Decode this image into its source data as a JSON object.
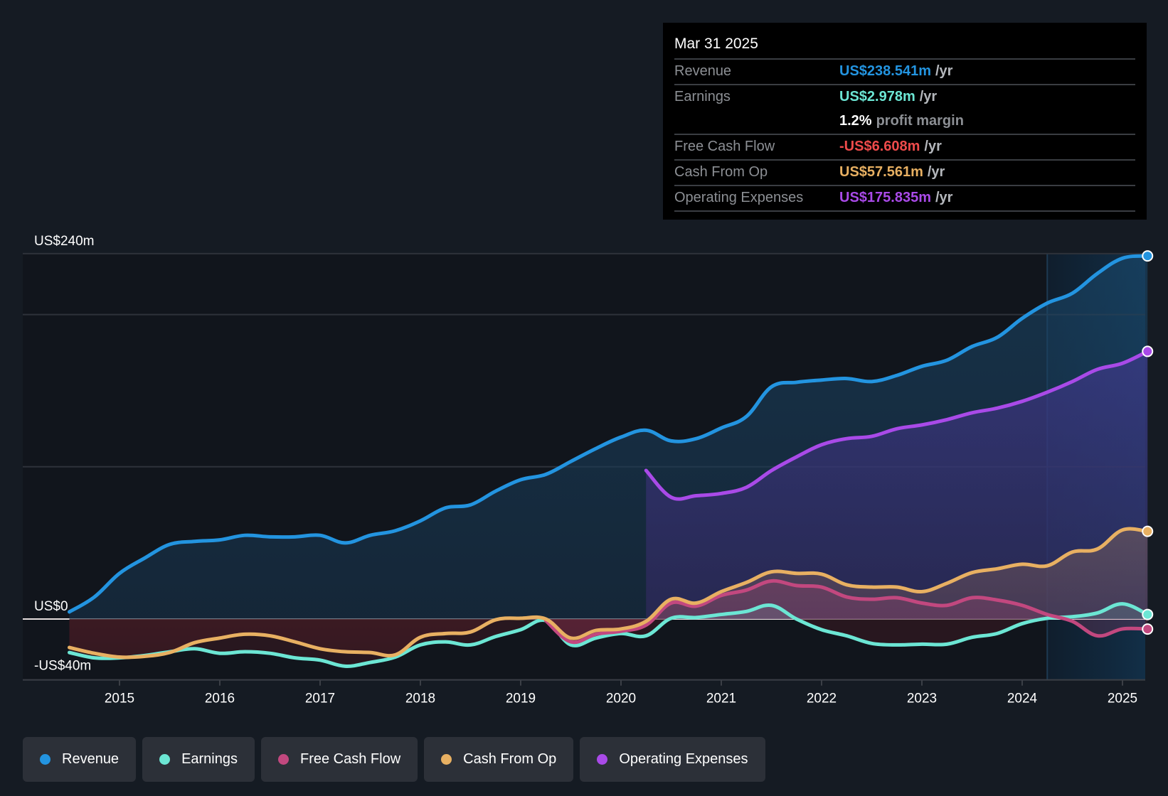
{
  "colors": {
    "revenue": "#2394e0",
    "earnings": "#6ce6d4",
    "fcf": "#c2487f",
    "cashop": "#e8b062",
    "opex": "#a94ae8",
    "fcf_negative_text": "#ee4b4b"
  },
  "tooltip": {
    "date": "Mar 31 2025",
    "rows": [
      {
        "label": "Revenue",
        "value": "US$238.541m",
        "unit": "/yr",
        "color_key": "revenue"
      },
      {
        "label": "Earnings",
        "value": "US$2.978m",
        "unit": "/yr",
        "color_key": "earnings"
      },
      {
        "label": "",
        "value": "1.2%",
        "unit": "profit margin"
      },
      {
        "label": "Free Cash Flow",
        "value": "-US$6.608m",
        "unit": "/yr",
        "color_key": "fcf_negative_text"
      },
      {
        "label": "Cash From Op",
        "value": "US$57.561m",
        "unit": "/yr",
        "color_key": "cashop"
      },
      {
        "label": "Operating Expenses",
        "value": "US$175.835m",
        "unit": "/yr",
        "color_key": "opex"
      }
    ]
  },
  "legend": [
    {
      "label": "Revenue",
      "key": "revenue"
    },
    {
      "label": "Earnings",
      "key": "earnings"
    },
    {
      "label": "Free Cash Flow",
      "key": "fcf"
    },
    {
      "label": "Cash From Op",
      "key": "cashop"
    },
    {
      "label": "Operating Expenses",
      "key": "opex"
    }
  ],
  "chart_data": {
    "type": "area",
    "title": "",
    "xlabel": "",
    "ylabel": "",
    "ylim": [
      -40,
      240
    ],
    "y_tick_labels": [
      {
        "value": 240,
        "label": "US$240m"
      },
      {
        "value": 0,
        "label": "US$0"
      },
      {
        "value": -40,
        "label": "-US$40m"
      }
    ],
    "y_gridlines": [
      240,
      200,
      100,
      0,
      -40
    ],
    "xlim": [
      2014.0,
      2025.25
    ],
    "x_ticks": [
      2015,
      2016,
      2017,
      2018,
      2019,
      2020,
      2021,
      2022,
      2023,
      2024,
      2025
    ],
    "x_tick_labels": [
      "2015",
      "2016",
      "2017",
      "2018",
      "2019",
      "2020",
      "2021",
      "2022",
      "2023",
      "2024",
      "2025"
    ],
    "highlight_range": [
      2024.25,
      2025.25
    ],
    "grid": true,
    "legend_position": "bottom",
    "units": "US$ millions",
    "series": [
      {
        "name": "Revenue",
        "key": "revenue",
        "x": [
          2014.5,
          2014.75,
          2015,
          2015.25,
          2015.5,
          2015.75,
          2016,
          2016.25,
          2016.5,
          2016.75,
          2017,
          2017.25,
          2017.5,
          2017.75,
          2018,
          2018.25,
          2018.5,
          2018.75,
          2019,
          2019.25,
          2019.5,
          2019.75,
          2020,
          2020.25,
          2020.5,
          2020.75,
          2021,
          2021.25,
          2021.5,
          2021.75,
          2022,
          2022.25,
          2022.5,
          2022.75,
          2023,
          2023.25,
          2023.5,
          2023.75,
          2024,
          2024.25,
          2024.5,
          2024.75,
          2025,
          2025.25
        ],
        "values": [
          4.7,
          14.5,
          30,
          40,
          49,
          51,
          52,
          55,
          54,
          54,
          55,
          50,
          55,
          58,
          64.5,
          73,
          75,
          84,
          91.5,
          95,
          103.5,
          112,
          119.5,
          124,
          117,
          118.5,
          125.5,
          133,
          152.5,
          155.5,
          157,
          158,
          156,
          160,
          166,
          170,
          179,
          185,
          197.5,
          207.5,
          214,
          227,
          237,
          238.5
        ]
      },
      {
        "name": "Earnings",
        "key": "earnings",
        "x": [
          2014.5,
          2014.75,
          2015,
          2015.25,
          2015.5,
          2015.75,
          2016,
          2016.25,
          2016.5,
          2016.75,
          2017,
          2017.25,
          2017.5,
          2017.75,
          2018,
          2018.25,
          2018.5,
          2018.75,
          2019,
          2019.25,
          2019.5,
          2019.75,
          2020,
          2020.25,
          2020.5,
          2020.75,
          2021,
          2021.25,
          2021.5,
          2021.75,
          2022,
          2022.25,
          2022.5,
          2022.75,
          2023,
          2023.25,
          2023.5,
          2023.75,
          2024,
          2024.25,
          2024.5,
          2024.75,
          2025,
          2025.25
        ],
        "values": [
          -22,
          -25.5,
          -25.5,
          -24,
          -21.5,
          -19.5,
          -22.5,
          -21.5,
          -22.5,
          -25.5,
          -27,
          -31,
          -28.5,
          -25,
          -17,
          -15,
          -17,
          -11.5,
          -7,
          -1,
          -17,
          -12.5,
          -9.5,
          -11,
          0.5,
          1,
          3,
          5,
          9,
          0,
          -7,
          -11,
          -16,
          -17,
          -16.5,
          -16.5,
          -12,
          -9.5,
          -3,
          0.5,
          1.5,
          4,
          10,
          3
        ]
      },
      {
        "name": "Free Cash Flow",
        "key": "fcf",
        "x": [
          2019.25,
          2019.5,
          2019.75,
          2020,
          2020.25,
          2020.5,
          2020.75,
          2021,
          2021.25,
          2021.5,
          2021.75,
          2022,
          2022.25,
          2022.5,
          2022.75,
          2023,
          2023.25,
          2023.5,
          2023.75,
          2024,
          2024.25,
          2024.5,
          2024.75,
          2025,
          2025.25
        ],
        "values": [
          -1,
          -15,
          -10,
          -8,
          -4,
          10.5,
          8.5,
          15.5,
          19,
          25,
          22,
          21,
          14.5,
          13,
          14,
          10.5,
          9,
          14,
          12.5,
          9,
          3,
          -1.5,
          -11,
          -6.5,
          -6.6
        ]
      },
      {
        "name": "Cash From Op",
        "key": "cashop",
        "x": [
          2014.5,
          2014.75,
          2015,
          2015.25,
          2015.5,
          2015.75,
          2016,
          2016.25,
          2016.5,
          2016.75,
          2017,
          2017.25,
          2017.5,
          2017.75,
          2018,
          2018.25,
          2018.5,
          2018.75,
          2019,
          2019.25,
          2019.5,
          2019.75,
          2020,
          2020.25,
          2020.5,
          2020.75,
          2021,
          2021.25,
          2021.5,
          2021.75,
          2022,
          2022.25,
          2022.5,
          2022.75,
          2023,
          2023.25,
          2023.5,
          2023.75,
          2024,
          2024.25,
          2024.5,
          2024.75,
          2025,
          2025.25
        ],
        "values": [
          -18.7,
          -22.5,
          -25,
          -24.5,
          -22,
          -15.5,
          -12.5,
          -10,
          -11,
          -15,
          -19.5,
          -21.5,
          -22,
          -23.5,
          -12,
          -9.5,
          -8.5,
          -0.5,
          0.5,
          0,
          -12.5,
          -7.5,
          -6.5,
          -1.5,
          13,
          10.5,
          18,
          24,
          31,
          30,
          29.5,
          22.5,
          21,
          21,
          18,
          23.5,
          30.5,
          33,
          36,
          35,
          44,
          46,
          58.5,
          57.6
        ]
      },
      {
        "name": "Operating Expenses",
        "key": "opex",
        "x": [
          2020.25,
          2020.5,
          2020.75,
          2021,
          2021.25,
          2021.5,
          2021.75,
          2022,
          2022.25,
          2022.5,
          2022.75,
          2023,
          2023.25,
          2023.5,
          2023.75,
          2024,
          2024.25,
          2024.5,
          2024.75,
          2025,
          2025.25
        ],
        "values": [
          97.6,
          80,
          81,
          82.5,
          86.5,
          97.5,
          106.5,
          114.5,
          118.5,
          120,
          125,
          127.5,
          131,
          135.5,
          138.5,
          143,
          149,
          156,
          164,
          168,
          175.8
        ]
      }
    ]
  }
}
